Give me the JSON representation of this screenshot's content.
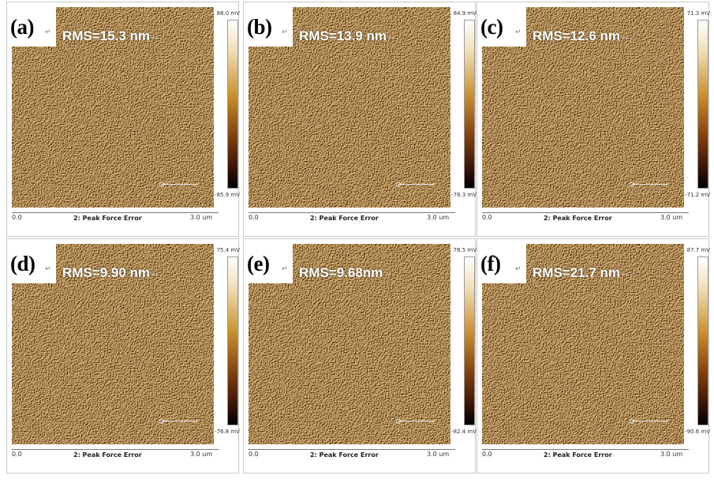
{
  "panels": [
    {
      "letter": "(a)",
      "rms": "RMS=15.3 nm",
      "cmax": "88.0 mV",
      "cmin": "-85.9 mV",
      "axis_start": "0.0",
      "axis_end": "3.0 um",
      "channel": "2: Peak Force Error"
    },
    {
      "letter": "(b)",
      "rms": "RMS=13.9 nm",
      "cmax": "84.9 mV",
      "cmin": "-78.3 mV",
      "axis_start": "0.0",
      "axis_end": "3.0 um",
      "channel": "2: Peak Force Error"
    },
    {
      "letter": "(c)",
      "rms": "RMS=12.6 nm",
      "cmax": "71.3 mV",
      "cmin": "-71.2 mV",
      "axis_start": "0.0",
      "axis_end": "3.0 um",
      "channel": "2: Peak Force Error"
    },
    {
      "letter": "(d)",
      "rms": "RMS=9.90 nm",
      "cmax": "75.4 mV",
      "cmin": "-76.8 mV",
      "axis_start": "0.0",
      "axis_end": "3.0 um",
      "channel": "2: Peak Force Error"
    },
    {
      "letter": "(e)",
      "rms": "RMS=9.68nm",
      "cmax": "78.5 mV",
      "cmin": "-82.4 mV",
      "axis_start": "0.0",
      "axis_end": "3.0 um",
      "channel": "2: Peak Force Error"
    },
    {
      "letter": "(f)",
      "rms": "RMS=21.7 nm",
      "cmax": "87.7 mV",
      "cmin": "-90.6 mV",
      "axis_start": "0.0",
      "axis_end": "3.0 um",
      "channel": "2: Peak Force Error"
    }
  ],
  "return_mark": "↵",
  "colors": {
    "afm_base": "#8a4a16",
    "afm_light": "#e9c892",
    "afm_dark": "#3b1605"
  }
}
